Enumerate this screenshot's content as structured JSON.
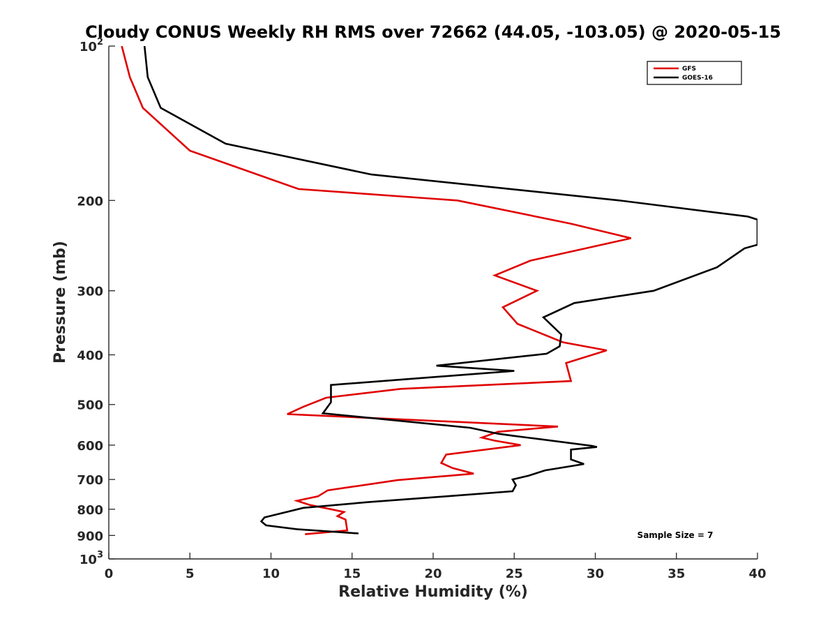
{
  "chart_data": {
    "type": "line",
    "title": "Cloudy CONUS Weekly RH RMS over 72662 (44.05, -103.05) @ 2020-05-15",
    "xlabel": "Relative Humidity (%)",
    "ylabel": "Pressure (mb)",
    "xlim": [
      0,
      40
    ],
    "ylim": [
      100,
      1000
    ],
    "y_scale": "log",
    "y_reversed": true,
    "x_ticks": [
      {
        "value": 0,
        "label": "0"
      },
      {
        "value": 5,
        "label": "5"
      },
      {
        "value": 10,
        "label": "10"
      },
      {
        "value": 15,
        "label": "15"
      },
      {
        "value": 20,
        "label": "20"
      },
      {
        "value": 25,
        "label": "25"
      },
      {
        "value": 30,
        "label": "30"
      },
      {
        "value": 35,
        "label": "35"
      },
      {
        "value": 40,
        "label": "40"
      }
    ],
    "y_ticks": [
      {
        "value": 100,
        "label": "10",
        "sup": "2"
      },
      {
        "value": 200,
        "label": "200"
      },
      {
        "value": 300,
        "label": "300"
      },
      {
        "value": 400,
        "label": "400"
      },
      {
        "value": 500,
        "label": "500"
      },
      {
        "value": 600,
        "label": "600"
      },
      {
        "value": 700,
        "label": "700"
      },
      {
        "value": 800,
        "label": "800"
      },
      {
        "value": 900,
        "label": "900"
      },
      {
        "value": 1000,
        "label": "10",
        "sup": "3"
      }
    ],
    "grid": false,
    "legend_position": "top-right",
    "annotation": "Sample Size = 7",
    "series": [
      {
        "name": "GFS",
        "color": "#e00000",
        "points": [
          [
            0.8,
            100
          ],
          [
            1.3,
            115
          ],
          [
            2.1,
            132
          ],
          [
            5.0,
            160
          ],
          [
            11.7,
            190
          ],
          [
            21.5,
            200
          ],
          [
            28.5,
            222
          ],
          [
            32.2,
            237
          ],
          [
            26.0,
            262
          ],
          [
            23.8,
            280
          ],
          [
            26.4,
            300
          ],
          [
            24.3,
            323
          ],
          [
            25.2,
            348
          ],
          [
            28.0,
            378
          ],
          [
            30.7,
            392
          ],
          [
            28.2,
            415
          ],
          [
            28.5,
            450
          ],
          [
            18.0,
            466
          ],
          [
            13.4,
            485
          ],
          [
            12.0,
            505
          ],
          [
            11.0,
            522
          ],
          [
            27.7,
            552
          ],
          [
            24.0,
            565
          ],
          [
            23.0,
            580
          ],
          [
            23.8,
            588
          ],
          [
            25.4,
            600
          ],
          [
            20.8,
            626
          ],
          [
            20.5,
            650
          ],
          [
            21.2,
            665
          ],
          [
            22.5,
            682
          ],
          [
            17.8,
            702
          ],
          [
            13.5,
            735
          ],
          [
            12.9,
            755
          ],
          [
            11.6,
            770
          ],
          [
            12.4,
            785
          ],
          [
            13.7,
            800
          ],
          [
            14.5,
            810
          ],
          [
            14.1,
            825
          ],
          [
            14.6,
            838
          ],
          [
            14.7,
            880
          ],
          [
            12.1,
            895
          ]
        ]
      },
      {
        "name": "GOES-16",
        "color": "#000000",
        "points": [
          [
            2.2,
            100
          ],
          [
            2.4,
            115
          ],
          [
            3.2,
            132
          ],
          [
            7.2,
            155
          ],
          [
            16.2,
            178
          ],
          [
            31.5,
            200
          ],
          [
            39.4,
            215
          ],
          [
            40.0,
            218
          ],
          [
            40.0,
            244
          ],
          [
            39.2,
            248
          ],
          [
            37.5,
            270
          ],
          [
            33.6,
            300
          ],
          [
            28.7,
            317
          ],
          [
            26.8,
            338
          ],
          [
            27.9,
            365
          ],
          [
            27.8,
            385
          ],
          [
            27.0,
            398
          ],
          [
            20.2,
            420
          ],
          [
            25.0,
            430
          ],
          [
            13.7,
            458
          ],
          [
            13.7,
            495
          ],
          [
            13.2,
            520
          ],
          [
            22.3,
            555
          ],
          [
            24.0,
            570
          ],
          [
            24.9,
            575
          ],
          [
            29.8,
            602
          ],
          [
            30.1,
            605
          ],
          [
            28.5,
            612
          ],
          [
            28.5,
            640
          ],
          [
            29.3,
            653
          ],
          [
            26.9,
            672
          ],
          [
            25.9,
            688
          ],
          [
            24.9,
            700
          ],
          [
            25.1,
            718
          ],
          [
            24.9,
            738
          ],
          [
            20.8,
            755
          ],
          [
            16.0,
            775
          ],
          [
            12.0,
            795
          ],
          [
            9.6,
            830
          ],
          [
            9.4,
            845
          ],
          [
            9.7,
            860
          ],
          [
            11.6,
            875
          ],
          [
            15.4,
            892
          ]
        ]
      }
    ]
  }
}
